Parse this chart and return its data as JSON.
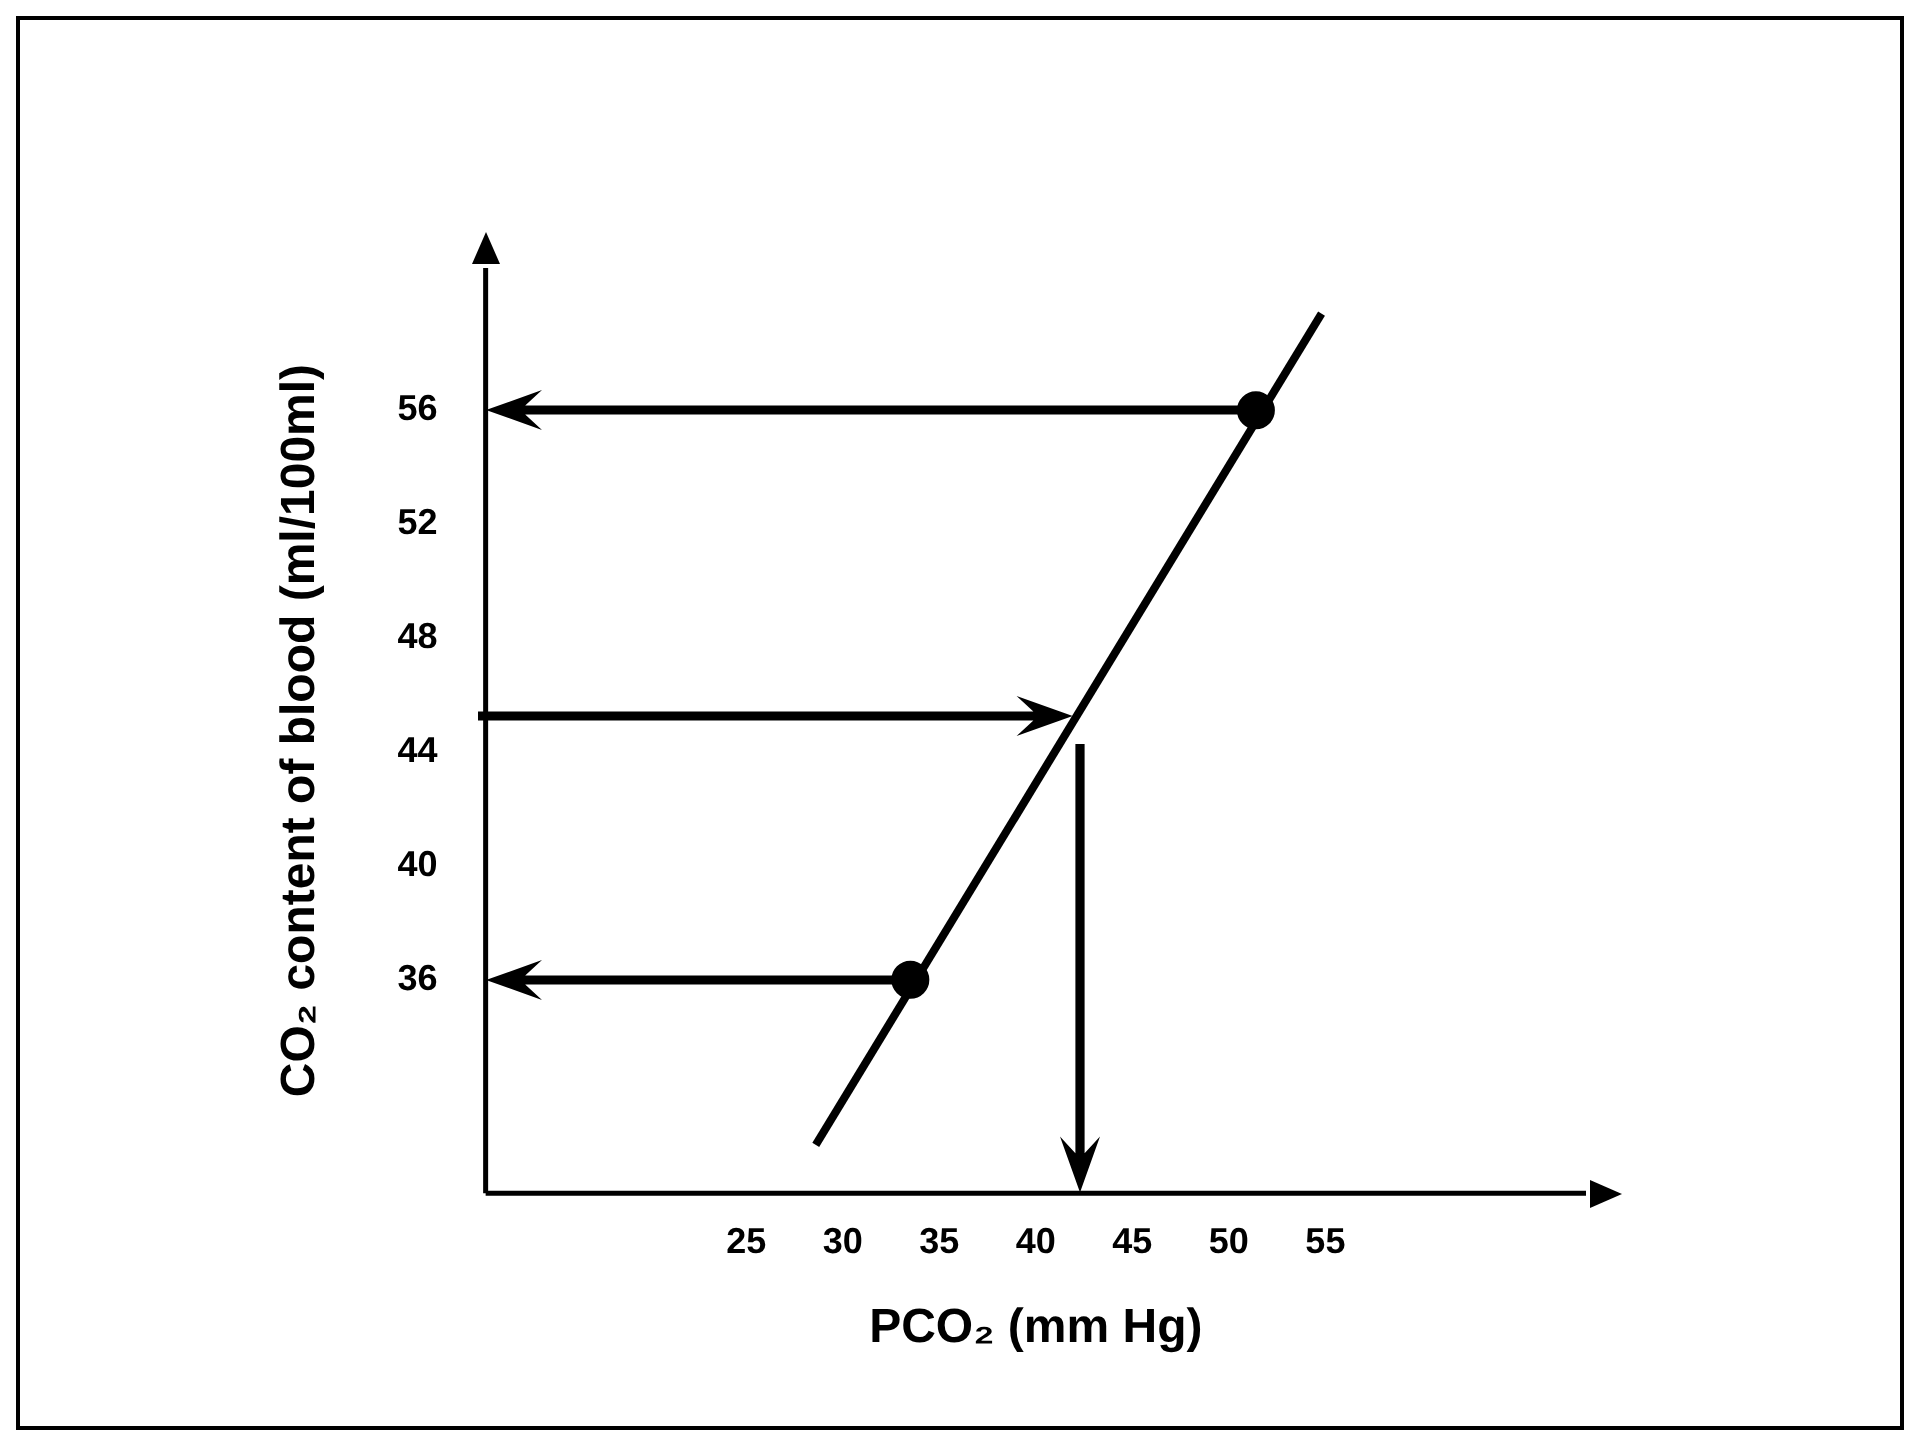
{
  "chart_data": {
    "type": "line",
    "xlabel": "PCO₂ (mm Hg)",
    "ylabel": "CO₂ content of blood (ml/100ml)",
    "xlim": [
      11.5,
      68.5
    ],
    "xticks": [
      25,
      30,
      35,
      40,
      45,
      50,
      55
    ],
    "ylim": [
      28.5,
      61
    ],
    "yticks": [
      36,
      40,
      44,
      48,
      52,
      56
    ],
    "grid": false,
    "legend": false,
    "marker": "none",
    "series": [
      {
        "color": "#000000",
        "x": [
          28.6,
          54.8
        ],
        "values": [
          30.2,
          59.4
        ]
      },
      {
        "type": "scatter",
        "color": "#000000",
        "marker": "circle",
        "x": [
          33.5,
          51.4
        ],
        "values": [
          36,
          56
        ]
      }
    ]
  }
}
